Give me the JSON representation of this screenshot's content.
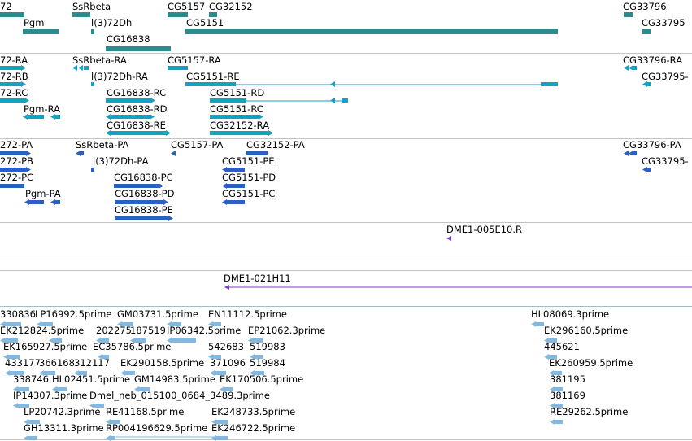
{
  "colors": {
    "gene": "#2a8c8c",
    "mrna": "#12a2c2",
    "protein": "#2a5fc4",
    "ext": "#7a3fbf",
    "est": "#84b8de"
  },
  "labels": {
    "gene": [
      "72",
      "SsRbeta",
      "CG5157",
      "CG32152",
      "CG33796",
      "Pgm",
      "l(3)72Dh",
      "CG5151",
      "CG33795",
      "CG16838"
    ],
    "mrna": [
      "72-RA",
      "SsRbeta-RA",
      "CG5157-RA",
      "CG33796-RA",
      "72-RB",
      "l(3)72Dh-RA",
      "CG5151-RE",
      "CG33795-",
      "72-RC",
      "CG16838-RC",
      "CG5151-RD",
      "Pgm-RA",
      "CG16838-RD",
      "CG5151-RC",
      "CG16838-RE",
      "CG32152-RA"
    ],
    "protein": [
      "272-PA",
      "SsRbeta-PA",
      "CG5157-PA",
      "CG32152-PA",
      "CG33796-PA",
      "272-PB",
      "l(3)72Dh-PA",
      "CG5151-PE",
      "CG33795-",
      "272-PC",
      "CG16838-PC",
      "CG5151-PD",
      "Pgm-PA",
      "CG16838-PD",
      "CG5151-PC",
      "CG16838-PE"
    ],
    "ext1": [
      "DME1-005E10.R"
    ],
    "ext2": [
      "DME1-021H11"
    ],
    "est": [
      "330836",
      "LP16992.5prime",
      "GM03731.5prime",
      "EN11112.5prime",
      "HL08069.3prime",
      "EK212824.5prime",
      "202275",
      "187519",
      "IP06342.5prime",
      "EP21062.3prime",
      "EK296160.5prime",
      "EK165927.5prime",
      "EC35786.5prime",
      "542683",
      "519983",
      "445621",
      "433177",
      "366168",
      "312117",
      "EK290158.5prime",
      "371096",
      "519984",
      "EK260959.5prime",
      "338746",
      "HL02451.5prime",
      "GM14983.5prime",
      "EK170506.5prime",
      "381195",
      "IP14307.3prime",
      "Dmel_neb_015100_0684_3489.3prime",
      "381169",
      "LP20742.3prime",
      "RE41168.5prime",
      "EK248733.5prime",
      "RE29262.5prime",
      "GH13311.3prime",
      "RP004196629.5prime",
      "EK246722.5prime"
    ]
  }
}
